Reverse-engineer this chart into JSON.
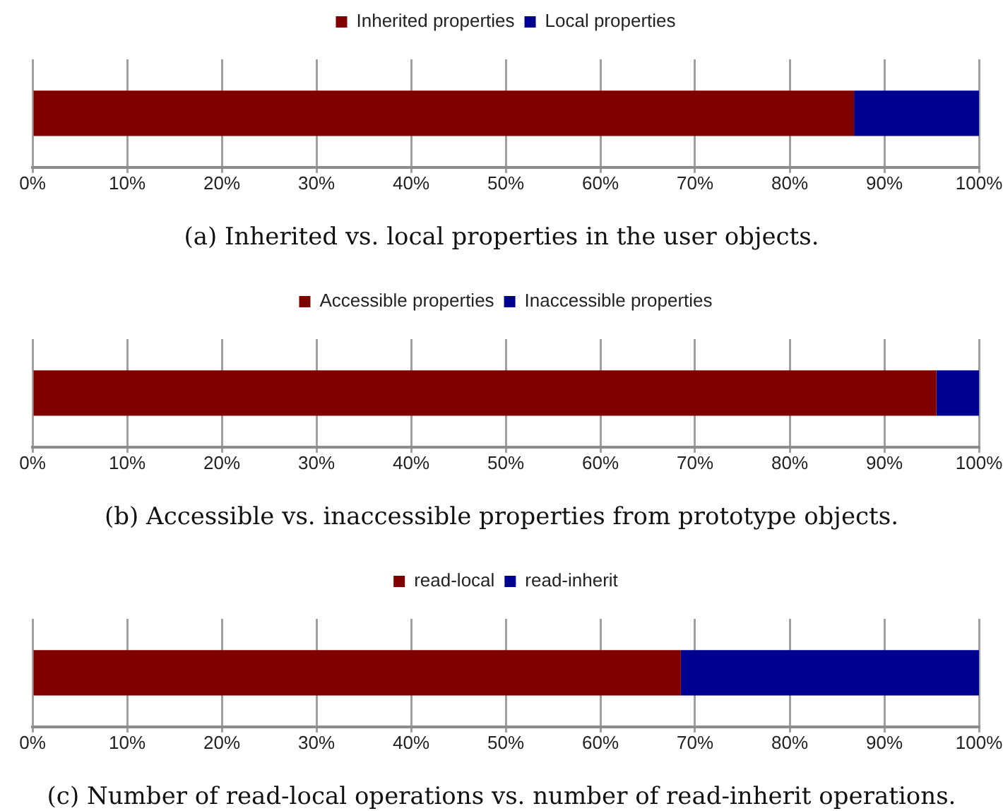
{
  "chart_data": [
    {
      "type": "bar",
      "orientation": "horizontal",
      "stacked": true,
      "categories": [
        null
      ],
      "series": [
        {
          "name": "Inherited properties",
          "color": "#800000",
          "values": [
            86.8
          ]
        },
        {
          "name": "Local properties",
          "color": "#000090",
          "values": [
            13.2
          ]
        }
      ],
      "xlim": [
        0,
        100
      ],
      "xticks": [
        {
          "value": 0,
          "label": "0%"
        },
        {
          "value": 10,
          "label": "10%"
        },
        {
          "value": 20,
          "label": "20%"
        },
        {
          "value": 30,
          "label": "30%"
        },
        {
          "value": 40,
          "label": "40%"
        },
        {
          "value": 50,
          "label": "50%"
        },
        {
          "value": 60,
          "label": "60%"
        },
        {
          "value": 70,
          "label": "70%"
        },
        {
          "value": 80,
          "label": "80%"
        },
        {
          "value": 90,
          "label": "90%"
        },
        {
          "value": 100,
          "label": "100%"
        }
      ],
      "grid": "x",
      "legend": "top",
      "annotations": [
        "(a) Inherited vs. local properties in the user objects."
      ]
    },
    {
      "type": "bar",
      "orientation": "horizontal",
      "stacked": true,
      "categories": [
        null
      ],
      "series": [
        {
          "name": "Accessible properties",
          "color": "#800000",
          "values": [
            95.5
          ]
        },
        {
          "name": "Inaccessible properties",
          "color": "#000090",
          "values": [
            4.5
          ]
        }
      ],
      "xlim": [
        0,
        100
      ],
      "xticks": [
        {
          "value": 0,
          "label": "0%"
        },
        {
          "value": 10,
          "label": "10%"
        },
        {
          "value": 20,
          "label": "20%"
        },
        {
          "value": 30,
          "label": "30%"
        },
        {
          "value": 40,
          "label": "40%"
        },
        {
          "value": 50,
          "label": "50%"
        },
        {
          "value": 60,
          "label": "60%"
        },
        {
          "value": 70,
          "label": "70%"
        },
        {
          "value": 80,
          "label": "80%"
        },
        {
          "value": 90,
          "label": "90%"
        },
        {
          "value": 100,
          "label": "100%"
        }
      ],
      "grid": "x",
      "legend": "top",
      "annotations": [
        "(b) Accessible vs. inaccessible properties from prototype objects."
      ]
    },
    {
      "type": "bar",
      "orientation": "horizontal",
      "stacked": true,
      "categories": [
        null
      ],
      "series": [
        {
          "name": "read-local",
          "color": "#800000",
          "values": [
            68.5
          ]
        },
        {
          "name": "read-inherit",
          "color": "#000090",
          "values": [
            31.5
          ]
        }
      ],
      "xlim": [
        0,
        100
      ],
      "xticks": [
        {
          "value": 0,
          "label": "0%"
        },
        {
          "value": 10,
          "label": "10%"
        },
        {
          "value": 20,
          "label": "20%"
        },
        {
          "value": 30,
          "label": "30%"
        },
        {
          "value": 40,
          "label": "40%"
        },
        {
          "value": 50,
          "label": "50%"
        },
        {
          "value": 60,
          "label": "60%"
        },
        {
          "value": 70,
          "label": "70%"
        },
        {
          "value": 80,
          "label": "80%"
        },
        {
          "value": 90,
          "label": "90%"
        },
        {
          "value": 100,
          "label": "100%"
        }
      ],
      "grid": "x",
      "legend": "top",
      "annotations": [
        "(c) Number of read-local operations vs. number of read-inherit operations."
      ]
    }
  ]
}
